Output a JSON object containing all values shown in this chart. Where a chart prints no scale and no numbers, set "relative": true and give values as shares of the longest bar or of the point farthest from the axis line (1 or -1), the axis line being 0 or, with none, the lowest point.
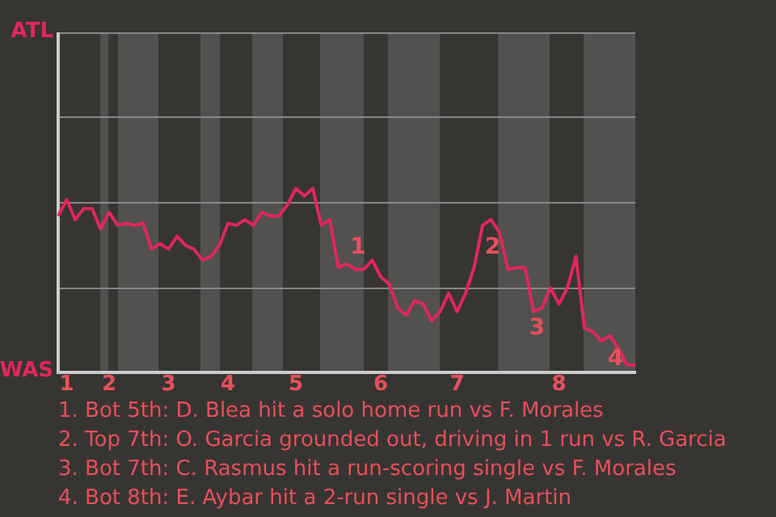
{
  "chart_data": {
    "type": "line",
    "relative": true,
    "categories": [
      null,
      "1",
      null,
      null,
      null,
      null,
      "2",
      null,
      null,
      null,
      null,
      null,
      null,
      "3",
      null,
      null,
      null,
      null,
      null,
      null,
      "4",
      null,
      null,
      null,
      null,
      null,
      null,
      null,
      "5",
      null,
      null,
      null,
      null,
      null,
      null,
      null,
      null,
      null,
      "6",
      null,
      null,
      null,
      null,
      null,
      null,
      null,
      null,
      "7",
      null,
      null,
      null,
      null,
      null,
      null,
      null,
      null,
      null,
      null,
      null,
      "8",
      null,
      null,
      null,
      null,
      null,
      null,
      null,
      null,
      null
    ],
    "series": [
      {
        "color": "#e0285a",
        "values": [
          0.85,
          0.94,
          0.83,
          0.89,
          0.89,
          0.78,
          0.87,
          0.8,
          0.81,
          0.8,
          0.81,
          0.67,
          0.7,
          0.67,
          0.74,
          0.69,
          0.67,
          0.61,
          0.63,
          0.69,
          0.81,
          0.8,
          0.83,
          0.8,
          0.87,
          0.85,
          0.85,
          0.91,
          1,
          0.96,
          1,
          0.8,
          0.83,
          0.57,
          0.59,
          0.56,
          0.56,
          0.61,
          0.52,
          0.48,
          0.35,
          0.31,
          0.39,
          0.37,
          0.28,
          0.33,
          0.43,
          0.33,
          0.43,
          0.57,
          0.8,
          0.83,
          0.76,
          0.56,
          0.57,
          0.57,
          0.33,
          0.35,
          0.46,
          0.37,
          0.46,
          0.63,
          0.24,
          0.22,
          0.17,
          0.2,
          0.13,
          0.04,
          0.04
        ]
      }
    ],
    "marker": "none",
    "ref_lines": [
      {
        "axis": "y",
        "value": 0.46,
        "color": "#888888"
      },
      {
        "axis": "y",
        "value": 0.93,
        "color": "#888888"
      },
      {
        "axis": "y",
        "value": 1.39,
        "color": "#888888"
      }
    ],
    "annotations": [
      "ATL",
      "WAS",
      "1",
      "2",
      "3",
      "4",
      "1. Bot 5th: D. Blea hit a solo home run vs F. Morales",
      "2. Top 7th: O. Garcia grounded out, driving in 1 run vs R. Garcia",
      "3. Bot 7th: C. Rasmus hit a run-scoring single vs F. Morales",
      "4. Bot 8th: E. Aybar hit a 2-run single vs J. Martin"
    ]
  }
}
